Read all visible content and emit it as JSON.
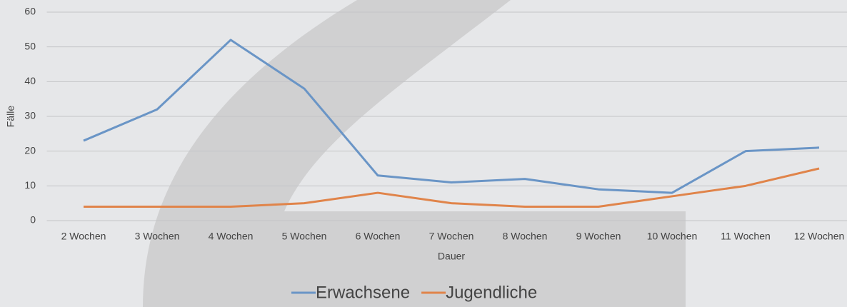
{
  "chart_data": {
    "type": "line",
    "categories": [
      "2 Wochen",
      "3 Wochen",
      "4 Wochen",
      "5 Wochen",
      "6 Wochen",
      "7 Wochen",
      "8 Wochen",
      "9 Wochen",
      "10 Wochen",
      "11 Wochen",
      "12 Wochen"
    ],
    "series": [
      {
        "name": "Erwachsene",
        "color": "#6a95c6",
        "values": [
          23,
          32,
          52,
          38,
          13,
          11,
          12,
          9,
          8,
          20,
          21
        ]
      },
      {
        "name": "Jugendliche",
        "color": "#e0844a",
        "values": [
          4,
          4,
          4,
          5,
          8,
          5,
          4,
          4,
          7,
          10,
          15
        ]
      }
    ],
    "xlabel": "Dauer",
    "ylabel": "Fälle",
    "ylim": [
      0,
      60
    ],
    "yticks": [
      0,
      10,
      20,
      30,
      40,
      50,
      60
    ],
    "grid": true,
    "legend": "bottom"
  }
}
